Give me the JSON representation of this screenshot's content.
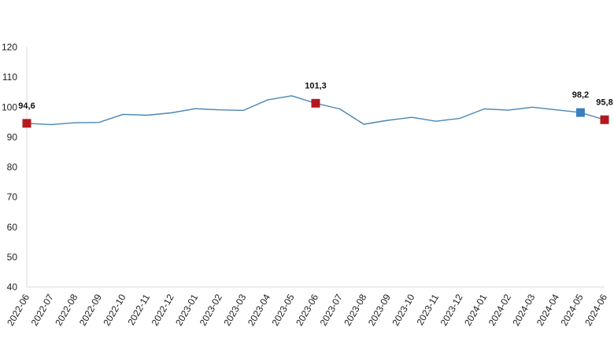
{
  "chart_data": {
    "type": "line",
    "title": "",
    "xlabel": "",
    "ylabel": "",
    "ylim": [
      40,
      120
    ],
    "yticks": [
      40,
      50,
      60,
      70,
      80,
      90,
      100,
      110,
      120
    ],
    "grid": false,
    "categories": [
      "2022-06",
      "2022-07",
      "2022-08",
      "2022-09",
      "2022-10",
      "2022-11",
      "2022-12",
      "2023-01",
      "2023-02",
      "2023-03",
      "2023-04",
      "2023-05",
      "2023-06",
      "2023-07",
      "2023-08",
      "2023-09",
      "2023-10",
      "2023-11",
      "2023-12",
      "2024-01",
      "2024-02",
      "2024-03",
      "2024-04",
      "2024-05",
      "2024-06"
    ],
    "series": [
      {
        "values": [
          94.6,
          94.2,
          94.8,
          94.9,
          97.6,
          97.3,
          98.1,
          99.5,
          99.1,
          98.9,
          102.4,
          103.8,
          101.3,
          99.4,
          94.3,
          95.6,
          96.6,
          95.3,
          96.3,
          99.4,
          99.0,
          100.0,
          99.1,
          98.2,
          95.8
        ],
        "color": "#4a86b4"
      }
    ],
    "highlights": [
      {
        "index": 0,
        "label": "94,6",
        "color": "#b3191f"
      },
      {
        "index": 12,
        "label": "101,3",
        "color": "#b3191f"
      },
      {
        "index": 23,
        "label": "98,2",
        "color": "#3a7fbf"
      },
      {
        "index": 24,
        "label": "95,8",
        "color": "#b3191f"
      }
    ]
  }
}
